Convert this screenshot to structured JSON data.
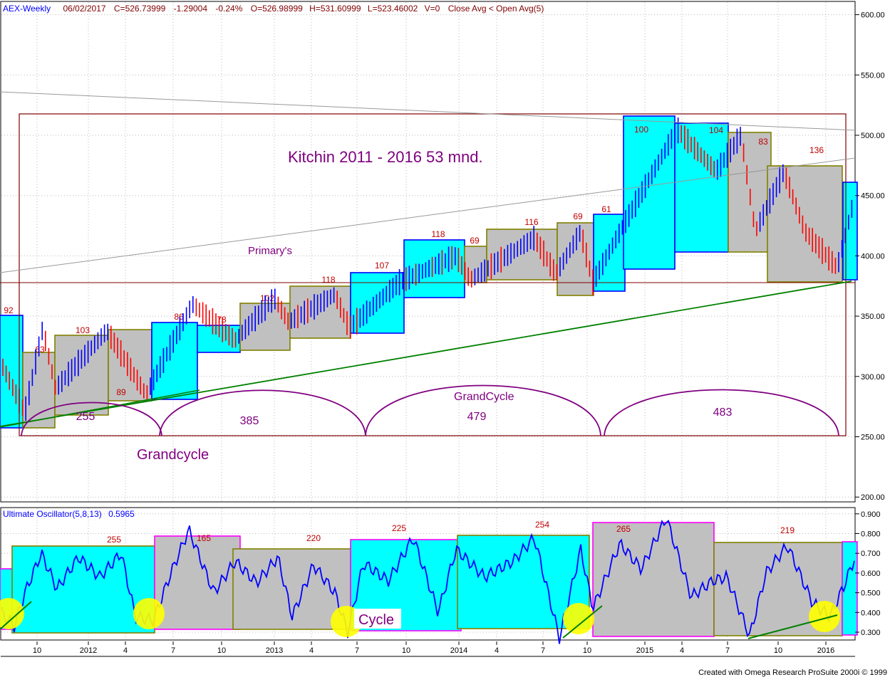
{
  "header": {
    "symbol": "AEX-Weekly",
    "date": "06/02/2017",
    "close": "C=526.73999",
    "change": "-1.29004",
    "pct": "-0.24%",
    "open": "O=526.98999",
    "high": "H=531.60999",
    "low": "L=523.46002",
    "volume": "V=0",
    "condition": "Close Avg < Open Avg(5)"
  },
  "oscillator": {
    "label": "Ultimate Oscillator(5,8,13)",
    "value": "0.5965"
  },
  "footer_text": "Created with Omega Research ProSuite 2000i © 1999",
  "colors": {
    "up_bar": "#0000ff",
    "down_bar": "#ff0000",
    "cyan_box": "#00ffff",
    "gray_box": "#c0c0c0",
    "trend_green": "#008000",
    "annotation_purple": "#800080",
    "count_red": "#c00000",
    "frame_maroon": "#800000",
    "highlight_yellow": "#ffff00"
  },
  "chart_data": [
    {
      "type": "bar",
      "subtype": "ohlc-weekly",
      "title": "AEX-Weekly",
      "y_ticks": [
        200,
        250,
        300,
        350,
        400,
        450,
        500,
        550,
        600
      ],
      "ylim": [
        190,
        608
      ],
      "grid": true,
      "annotations": {
        "main_title": "Kitchin 2011 - 2016 53 mnd.",
        "primary_label": "Primary's",
        "grand_label": "GrandCycle",
        "grandcycle_label": "Grandcycle",
        "arc_counts": [
          "255",
          "385",
          "479",
          "483"
        ],
        "box_counts": [
          "92",
          "63",
          "103",
          "89",
          "86",
          "78",
          "102",
          "118",
          "107",
          "118",
          "69",
          "116",
          "69",
          "61",
          "100",
          "104",
          "83",
          "136"
        ]
      }
    },
    {
      "type": "line",
      "title": "Ultimate Oscillator(5,8,13)",
      "y_ticks": [
        0.3,
        0.4,
        0.5,
        0.6,
        0.7,
        0.8,
        0.9
      ],
      "y_tick_labels": [
        "0.300",
        "0.400",
        "0.500",
        "0.600",
        "0.700",
        "0.800",
        "0.900"
      ],
      "ylim": [
        0.26,
        0.93
      ],
      "annotations": {
        "cycle_label": "Cycle",
        "box_counts": [
          "255",
          "165",
          "220",
          "225",
          "254",
          "265",
          "219"
        ]
      }
    }
  ],
  "x_axis_labels": [
    "10",
    "2012",
    "4",
    "7",
    "10",
    "2013",
    "4",
    "7",
    "10",
    "2014",
    "4",
    "7",
    "10",
    "2015",
    "4",
    "7",
    "10",
    "2016"
  ]
}
